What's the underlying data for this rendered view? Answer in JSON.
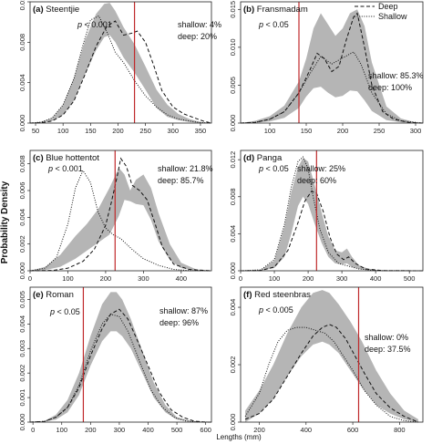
{
  "figure": {
    "ylabel": "Probability Density",
    "xlabel": "Lengths (mm)"
  },
  "legend": {
    "entries": [
      {
        "label": "Deep",
        "style": "dashed"
      },
      {
        "label": "Shallow",
        "style": "dotted"
      }
    ]
  },
  "chart_data": [
    {
      "type": "line",
      "panel_label": "(a)",
      "title": "Steentjie",
      "pvalue": "p < 0.001",
      "stat_lines": [
        "shallow: 4%",
        "deep: 20%"
      ],
      "xlim": [
        40,
        370
      ],
      "ylim": [
        0,
        0.012
      ],
      "xticks": [
        50,
        100,
        150,
        200,
        250,
        300,
        350
      ],
      "yticks": [
        0,
        0.004,
        0.008,
        0.012
      ],
      "ytick_labels": [
        "0.000",
        "0.004",
        "0.008",
        "0.012"
      ],
      "vline": 230,
      "band_x": [
        40,
        60,
        80,
        100,
        120,
        140,
        160,
        175,
        185,
        195,
        210,
        230,
        250,
        270,
        290,
        310,
        330,
        350,
        370
      ],
      "band_lower": [
        0,
        3e-05,
        0.0002,
        0.0008,
        0.0022,
        0.0048,
        0.0072,
        0.0085,
        0.0087,
        0.008,
        0.0065,
        0.005,
        0.0033,
        0.0015,
        0.0006,
        0.0003,
        0.0001,
        2e-05,
        0
      ],
      "band_upper": [
        0,
        0.0001,
        0.0005,
        0.0018,
        0.0045,
        0.0082,
        0.0108,
        0.0118,
        0.0119,
        0.0111,
        0.0095,
        0.0078,
        0.0056,
        0.0033,
        0.0018,
        0.0009,
        0.0004,
        0.0001,
        0
      ],
      "series": [
        {
          "name": "Deep",
          "style": "dashed",
          "x": [
            40,
            60,
            80,
            100,
            120,
            140,
            160,
            180,
            195,
            210,
            225,
            235,
            250,
            265,
            280,
            300,
            320,
            340,
            355,
            370
          ],
          "y": [
            0,
            4e-05,
            0.0002,
            0.0008,
            0.0022,
            0.0048,
            0.0076,
            0.0096,
            0.0101,
            0.0087,
            0.0089,
            0.0091,
            0.008,
            0.0057,
            0.0032,
            0.0016,
            0.0009,
            0.0005,
            0.0002,
            0
          ]
        },
        {
          "name": "Shallow",
          "style": "dotted",
          "x": [
            40,
            60,
            80,
            100,
            120,
            135,
            150,
            165,
            180,
            195,
            210,
            230,
            250,
            270,
            290,
            310,
            330,
            350,
            370
          ],
          "y": [
            0,
            0.0001,
            0.0005,
            0.0018,
            0.0044,
            0.0075,
            0.0102,
            0.0106,
            0.009,
            0.007,
            0.006,
            0.0042,
            0.0027,
            0.0016,
            0.0008,
            0.0004,
            0.0002,
            5e-05,
            0
          ]
        }
      ]
    },
    {
      "type": "line",
      "panel_label": "(b)",
      "title": "Fransmadam",
      "pvalue": "p < 0.05",
      "stat_lines": [
        "shallow: 85.3%",
        "deep: 100%"
      ],
      "xlim": [
        60,
        310
      ],
      "ylim": [
        0,
        0.016
      ],
      "xticks": [
        100,
        150,
        200,
        250,
        300
      ],
      "yticks": [
        0,
        0.005,
        0.01,
        0.015
      ],
      "ytick_labels": [
        "0.000",
        "0.005",
        "0.010",
        "0.015"
      ],
      "vline": 140,
      "band_x": [
        60,
        80,
        100,
        120,
        140,
        150,
        160,
        170,
        180,
        190,
        200,
        210,
        220,
        230,
        240,
        260,
        280,
        300,
        310
      ],
      "band_lower": [
        0,
        5e-05,
        0.0002,
        0.0007,
        0.002,
        0.0035,
        0.0046,
        0.0048,
        0.004,
        0.0034,
        0.0036,
        0.0043,
        0.0042,
        0.003,
        0.0016,
        0.0004,
        0.0001,
        2e-05,
        0
      ],
      "band_upper": [
        0,
        0.0003,
        0.0009,
        0.0023,
        0.0055,
        0.0085,
        0.0125,
        0.0145,
        0.013,
        0.0115,
        0.0125,
        0.0145,
        0.015,
        0.0128,
        0.008,
        0.0022,
        0.0006,
        0.0001,
        0
      ],
      "series": [
        {
          "name": "Deep",
          "style": "dashed",
          "x": [
            60,
            80,
            100,
            120,
            140,
            155,
            165,
            175,
            185,
            195,
            205,
            215,
            220,
            230,
            240,
            255,
            270,
            290,
            310
          ],
          "y": [
            0,
            0.0001,
            0.0005,
            0.0015,
            0.004,
            0.007,
            0.0092,
            0.0085,
            0.0068,
            0.0075,
            0.011,
            0.014,
            0.0145,
            0.01,
            0.005,
            0.0015,
            0.0005,
            0.0001,
            0
          ]
        },
        {
          "name": "Shallow",
          "style": "dotted",
          "x": [
            60,
            80,
            100,
            120,
            140,
            155,
            170,
            185,
            200,
            215,
            225,
            240,
            260,
            280,
            310
          ],
          "y": [
            0,
            0.0001,
            0.0005,
            0.0015,
            0.004,
            0.0065,
            0.0088,
            0.0078,
            0.0086,
            0.0094,
            0.0078,
            0.004,
            0.0012,
            0.0003,
            0
          ]
        }
      ]
    },
    {
      "type": "line",
      "panel_label": "(c)",
      "title": "Blue hottentot",
      "pvalue": "p < 0.001",
      "stat_lines": [
        "shallow: 21.8%",
        "deep: 85.7%"
      ],
      "xlim": [
        0,
        480
      ],
      "ylim": [
        0,
        0.009
      ],
      "xticks": [
        0,
        100,
        200,
        300,
        400
      ],
      "yticks": [
        0,
        0.002,
        0.004,
        0.006,
        0.008
      ],
      "ytick_labels": [
        "0.000",
        "0.002",
        "0.004",
        "0.006",
        "0.008"
      ],
      "vline": 225,
      "band_x": [
        0,
        40,
        80,
        120,
        150,
        180,
        210,
        235,
        250,
        265,
        280,
        300,
        320,
        340,
        370,
        400,
        440,
        480
      ],
      "band_lower": [
        0,
        5e-05,
        0.0003,
        0.0009,
        0.0015,
        0.0021,
        0.0027,
        0.0041,
        0.0053,
        0.0052,
        0.005,
        0.0049,
        0.0038,
        0.0022,
        0.0008,
        0.0002,
        3e-05,
        0
      ],
      "band_upper": [
        0,
        0.0003,
        0.0012,
        0.0026,
        0.0035,
        0.0046,
        0.0062,
        0.0077,
        0.0072,
        0.006,
        0.0068,
        0.0072,
        0.0062,
        0.0043,
        0.002,
        0.0006,
        0.0001,
        0
      ],
      "series": [
        {
          "name": "Deep",
          "style": "dashed",
          "x": [
            0,
            60,
            100,
            140,
            170,
            200,
            215,
            230,
            240,
            255,
            270,
            290,
            310,
            330,
            350,
            380,
            420,
            480
          ],
          "y": [
            0,
            3e-05,
            0.0002,
            0.0007,
            0.0016,
            0.0034,
            0.0051,
            0.007,
            0.0084,
            0.0078,
            0.0064,
            0.006,
            0.0053,
            0.0036,
            0.0018,
            0.0005,
            0.0001,
            0
          ]
        },
        {
          "name": "Shallow",
          "style": "dotted",
          "x": [
            0,
            40,
            70,
            100,
            120,
            140,
            160,
            180,
            200,
            220,
            240,
            270,
            300,
            340,
            380,
            420,
            480
          ],
          "y": [
            0,
            0.0002,
            0.001,
            0.0035,
            0.0062,
            0.0075,
            0.0066,
            0.0044,
            0.0032,
            0.0027,
            0.0024,
            0.0016,
            0.0009,
            0.0004,
            0.0001,
            2e-05,
            0
          ]
        }
      ]
    },
    {
      "type": "line",
      "panel_label": "(d)",
      "title": "Panga",
      "pvalue": "p < 0.05",
      "stat_lines": [
        "shallow: 25%",
        "deep: 60%"
      ],
      "xlim": [
        0,
        540
      ],
      "ylim": [
        0,
        0.013
      ],
      "xticks": [
        0,
        100,
        200,
        300,
        400,
        500
      ],
      "yticks": [
        0,
        0.004,
        0.008,
        0.012
      ],
      "ytick_labels": [
        "0.000",
        "0.004",
        "0.008",
        "0.012"
      ],
      "vline": 225,
      "band_x": [
        0,
        60,
        100,
        130,
        150,
        170,
        185,
        200,
        220,
        240,
        260,
        280,
        300,
        315,
        330,
        350,
        380,
        420,
        480,
        540
      ],
      "band_lower": [
        0,
        2e-05,
        0.0003,
        0.0015,
        0.004,
        0.007,
        0.008,
        0.0072,
        0.005,
        0.003,
        0.0015,
        0.0008,
        0.0007,
        0.0008,
        0.0004,
        0.0002,
        3e-05,
        0,
        0,
        0
      ],
      "band_upper": [
        0,
        0.0001,
        0.0011,
        0.0048,
        0.0085,
        0.0112,
        0.0122,
        0.0118,
        0.0092,
        0.0063,
        0.0037,
        0.0022,
        0.002,
        0.0024,
        0.0015,
        0.0006,
        0.0002,
        3e-05,
        0,
        0
      ],
      "series": [
        {
          "name": "Deep",
          "style": "dashed",
          "x": [
            0,
            60,
            100,
            140,
            170,
            190,
            210,
            225,
            245,
            265,
            285,
            305,
            320,
            340,
            370,
            420,
            540
          ],
          "y": [
            0,
            3e-05,
            0.0004,
            0.0022,
            0.0052,
            0.0075,
            0.0086,
            0.0084,
            0.0064,
            0.0036,
            0.0018,
            0.0012,
            0.0015,
            0.0008,
            0.0002,
            2e-05,
            0
          ]
        },
        {
          "name": "Shallow",
          "style": "dotted",
          "x": [
            0,
            60,
            100,
            130,
            150,
            170,
            185,
            200,
            215,
            235,
            260,
            290,
            320,
            350,
            400,
            540
          ],
          "y": [
            0,
            0.0001,
            0.0012,
            0.005,
            0.009,
            0.0118,
            0.0123,
            0.011,
            0.008,
            0.0045,
            0.002,
            0.0008,
            0.0005,
            0.0002,
            2e-05,
            0
          ]
        }
      ]
    },
    {
      "type": "line",
      "panel_label": "(e)",
      "title": "Roman",
      "pvalue": "p < 0.05",
      "stat_lines": [
        "shallow: 87%",
        "deep: 96%"
      ],
      "xlim": [
        -10,
        620
      ],
      "ylim": [
        0,
        0.0055
      ],
      "xticks": [
        0,
        100,
        200,
        300,
        400,
        500,
        600
      ],
      "yticks": [
        0,
        0.001,
        0.002,
        0.003,
        0.004,
        0.005
      ],
      "ytick_labels": [
        "0.000",
        "0.001",
        "0.002",
        "0.003",
        "0.004",
        "0.005"
      ],
      "vline": 175,
      "band_x": [
        -10,
        40,
        80,
        120,
        160,
        200,
        240,
        270,
        290,
        310,
        340,
        380,
        420,
        460,
        500,
        550,
        600,
        620
      ],
      "band_lower": [
        0,
        2e-05,
        0.0001,
        0.0004,
        0.0011,
        0.0023,
        0.0033,
        0.0037,
        0.0037,
        0.0035,
        0.003,
        0.002,
        0.001,
        0.0004,
        0.0001,
        2e-05,
        0,
        0
      ],
      "band_upper": [
        0,
        5e-05,
        0.0003,
        0.0009,
        0.002,
        0.0035,
        0.0048,
        0.0053,
        0.0053,
        0.005,
        0.0042,
        0.0029,
        0.0016,
        0.0007,
        0.0002,
        4e-05,
        0,
        0
      ],
      "series": [
        {
          "name": "Deep",
          "style": "dashed",
          "x": [
            -10,
            40,
            80,
            120,
            160,
            200,
            240,
            270,
            300,
            330,
            360,
            400,
            440,
            480,
            520,
            560,
            600,
            620
          ],
          "y": [
            0,
            3e-05,
            0.0002,
            0.0006,
            0.0014,
            0.0027,
            0.0038,
            0.0044,
            0.0046,
            0.0042,
            0.0034,
            0.0023,
            0.0012,
            0.0005,
            0.0002,
            4e-05,
            0,
            0
          ]
        },
        {
          "name": "Shallow",
          "style": "dotted",
          "x": [
            -10,
            40,
            80,
            120,
            160,
            200,
            240,
            270,
            300,
            330,
            370,
            410,
            450,
            490,
            530,
            570,
            620
          ],
          "y": [
            0,
            3e-05,
            0.0002,
            0.0006,
            0.0015,
            0.0029,
            0.004,
            0.0044,
            0.0043,
            0.0037,
            0.0025,
            0.0013,
            0.0006,
            0.0002,
            5e-05,
            1e-05,
            0
          ]
        }
      ]
    },
    {
      "type": "line",
      "panel_label": "(f)",
      "title": "Red steenbras",
      "pvalue": "p < 0.005",
      "stat_lines": [
        "shallow: 0%",
        "deep: 37.5%"
      ],
      "xlim": [
        120,
        900
      ],
      "ylim": [
        0,
        0.0047
      ],
      "xticks": [
        200,
        400,
        600,
        800
      ],
      "yticks": [
        0,
        0.002,
        0.004
      ],
      "ytick_labels": [
        "0.000",
        "0.002",
        "0.004"
      ],
      "vline": 625,
      "band_x": [
        140,
        200,
        260,
        320,
        380,
        430,
        470,
        500,
        540,
        590,
        640,
        700,
        760,
        820,
        880
      ],
      "band_lower": [
        0,
        0.0003,
        0.0008,
        0.0016,
        0.0023,
        0.0027,
        0.0028,
        0.0027,
        0.0024,
        0.0018,
        0.0012,
        0.0006,
        0.0003,
        0.0001,
        0
      ],
      "band_upper": [
        0.0004,
        0.0011,
        0.002,
        0.0031,
        0.004,
        0.0045,
        0.0046,
        0.0045,
        0.0041,
        0.0035,
        0.0028,
        0.0018,
        0.001,
        0.0004,
        0.0001
      ],
      "series": [
        {
          "name": "Deep",
          "style": "dashed",
          "x": [
            140,
            200,
            260,
            320,
            380,
            430,
            470,
            500,
            530,
            570,
            610,
            650,
            700,
            760,
            820,
            880
          ],
          "y": [
            0.0001,
            0.0003,
            0.0008,
            0.0016,
            0.0024,
            0.003,
            0.0033,
            0.0034,
            0.0033,
            0.0029,
            0.0023,
            0.0017,
            0.001,
            0.0005,
            0.0002,
            0
          ]
        },
        {
          "name": "Shallow",
          "style": "dotted",
          "x": [
            140,
            200,
            240,
            280,
            320,
            360,
            400,
            440,
            480,
            520,
            560,
            600,
            650,
            700,
            760,
            820,
            880
          ],
          "y": [
            0.0002,
            0.001,
            0.002,
            0.0028,
            0.0032,
            0.0033,
            0.0033,
            0.0032,
            0.0031,
            0.0028,
            0.0023,
            0.0018,
            0.0011,
            0.0006,
            0.0002,
            5e-05,
            0
          ]
        }
      ]
    }
  ]
}
